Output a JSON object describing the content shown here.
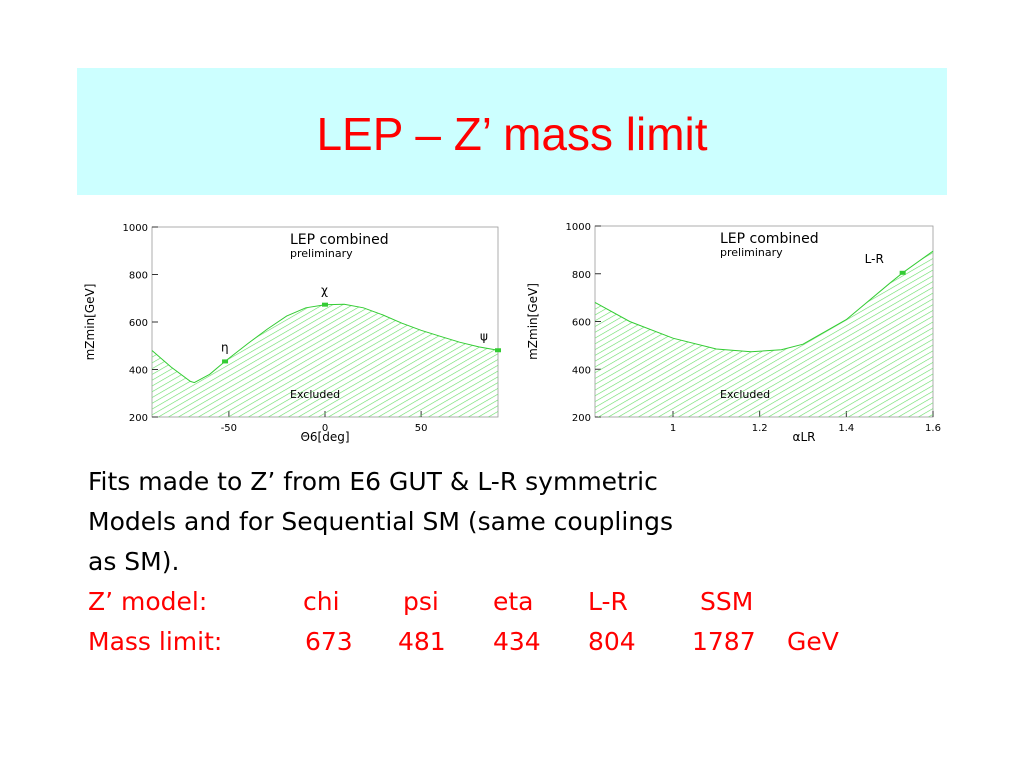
{
  "title": "LEP – Z’ mass limit",
  "body": [
    "Fits made to Z’ from E6 GUT & L-R symmetric",
    "Models and for Sequential SM (same couplings",
    "as SM)."
  ],
  "table": {
    "rows": [
      [
        "Z’ model:",
        "chi",
        "psi",
        "eta",
        "L-R",
        "SSM"
      ],
      [
        "Mass limit:",
        "673",
        "481",
        "434",
        "804",
        "1787",
        "GeV"
      ]
    ]
  },
  "chart_data": [
    {
      "type": "area",
      "x_label": "Θ6[deg]",
      "y_label": "mZmin[GeV]",
      "annotations": [
        "LEP combined",
        "preliminary",
        "Excluded"
      ],
      "x": [
        -90,
        -80,
        -70,
        -68,
        -60,
        -52,
        -40,
        -30,
        -20,
        -10,
        0,
        10,
        20,
        30,
        40,
        50,
        60,
        70,
        80,
        90
      ],
      "values": [
        480,
        410,
        350,
        345,
        380,
        434,
        510,
        570,
        625,
        660,
        673,
        675,
        660,
        630,
        595,
        565,
        540,
        515,
        495,
        481
      ],
      "markers": {
        "labels": [
          "η",
          "χ",
          "ψ"
        ],
        "x": [
          -52,
          0,
          90
        ],
        "y": [
          434,
          673,
          481
        ]
      },
      "color": "#33cc33",
      "xlim": [
        -90,
        90
      ],
      "xticks": [
        -50,
        0,
        50
      ],
      "ylim": [
        200,
        1000
      ],
      "yticks": [
        200,
        400,
        600,
        800,
        1000
      ]
    },
    {
      "type": "area",
      "x_label": "αLR",
      "y_label": "mZmin[GeV]",
      "annotations": [
        "LEP combined",
        "preliminary",
        "Excluded"
      ],
      "x": [
        0.82,
        0.9,
        1.0,
        1.1,
        1.18,
        1.25,
        1.3,
        1.4,
        1.5,
        1.53,
        1.6
      ],
      "values": [
        680,
        600,
        530,
        485,
        473,
        482,
        505,
        608,
        760,
        804,
        895
      ],
      "markers": {
        "labels": [
          "L-R"
        ],
        "x": [
          1.53
        ],
        "y": [
          804
        ]
      },
      "color": "#33cc33",
      "xlim": [
        0.82,
        1.6
      ],
      "xticks": [
        1,
        1.2,
        1.4,
        1.6
      ],
      "ylim": [
        200,
        1000
      ],
      "yticks": [
        200,
        400,
        600,
        800,
        1000
      ]
    }
  ]
}
